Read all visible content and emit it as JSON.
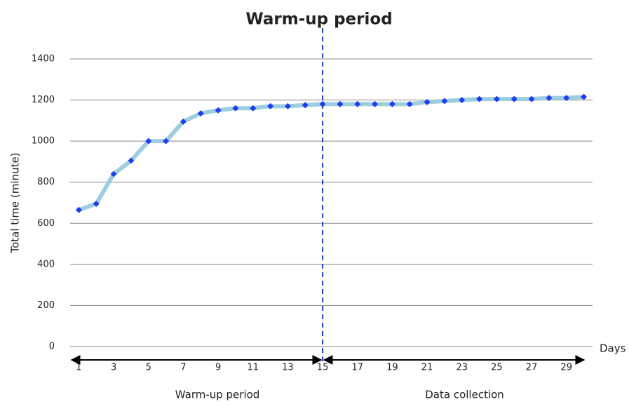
{
  "chart_data": {
    "type": "line",
    "title": "Warm-up period",
    "y_label": "Total time (minute)",
    "x_label": "Days",
    "x": [
      1,
      2,
      3,
      4,
      5,
      6,
      7,
      8,
      9,
      10,
      11,
      12,
      13,
      14,
      15,
      16,
      17,
      18,
      19,
      20,
      21,
      22,
      23,
      24,
      25,
      26,
      27,
      28,
      29,
      30
    ],
    "series": [
      {
        "color": "#9fcde0",
        "marker_color": "#1f3cf0",
        "values": [
          665,
          695,
          840,
          905,
          1000,
          1000,
          1095,
          1135,
          1150,
          1160,
          1160,
          1170,
          1170,
          1175,
          1180,
          1180,
          1180,
          1180,
          1180,
          1180,
          1190,
          1195,
          1200,
          1205,
          1205,
          1205,
          1205,
          1210,
          1210,
          1215
        ]
      }
    ],
    "xlim": [
      0.5,
      30.5
    ],
    "xticks": [
      1,
      3,
      5,
      7,
      9,
      11,
      13,
      15,
      17,
      19,
      21,
      23,
      25,
      27,
      29
    ],
    "ylim": [
      0,
      1400
    ],
    "yticks": [
      0,
      200,
      400,
      600,
      800,
      1000,
      1200,
      1400
    ],
    "grid": true,
    "vline": 15,
    "regions": [
      {
        "label": "Warm-up period"
      },
      {
        "label": "Data collection"
      }
    ]
  }
}
